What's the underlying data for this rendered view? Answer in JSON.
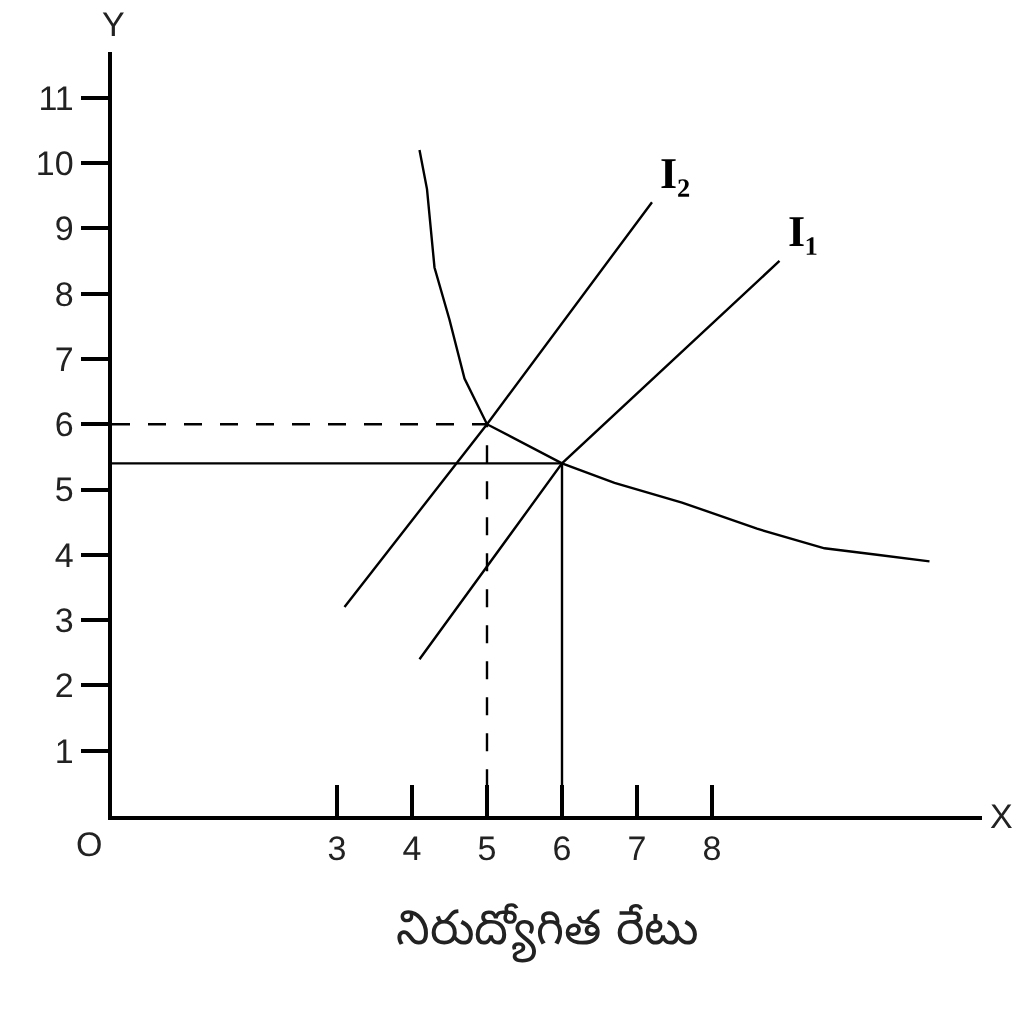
{
  "chart_data": {
    "type": "line",
    "xlabel": "నిరుద్యోగిత రేటు",
    "ylabel": "Y",
    "xlim": [
      0,
      11.6
    ],
    "ylim": [
      0,
      11.7
    ],
    "xticks": [
      3,
      4,
      5,
      6,
      7,
      8
    ],
    "yticks": [
      1,
      2,
      3,
      4,
      5,
      6,
      7,
      8,
      9,
      10,
      11
    ],
    "series": [
      {
        "color": "#000000",
        "x": [
          4.1,
          4.2,
          4.3,
          4.5,
          4.7,
          5,
          6,
          6.7,
          7.6,
          8.6,
          9.5,
          10.2,
          10.9
        ],
        "values": [
          10.2,
          9.6,
          8.4,
          7.6,
          6.7,
          6,
          5.4,
          5.1,
          4.8,
          4.4,
          4.1,
          4.0,
          3.9
        ]
      },
      {
        "name": "I₂",
        "color": "#000000",
        "x": [
          3.1,
          5,
          7.2
        ],
        "values": [
          3.2,
          6,
          9.4
        ]
      },
      {
        "name": "I₁",
        "color": "#000000",
        "x": [
          4.1,
          6,
          8.9
        ],
        "values": [
          2.4,
          5.4,
          8.5
        ]
      },
      {
        "color": "#000000",
        "line_style": "dashed",
        "x": [
          0,
          5,
          5
        ],
        "values": [
          6,
          6,
          0
        ]
      },
      {
        "color": "#000000",
        "line_style": "solid",
        "x": [
          0,
          6,
          6
        ],
        "values": [
          5.4,
          5.4,
          0
        ]
      }
    ],
    "annotations": [
      "X",
      "O"
    ]
  }
}
